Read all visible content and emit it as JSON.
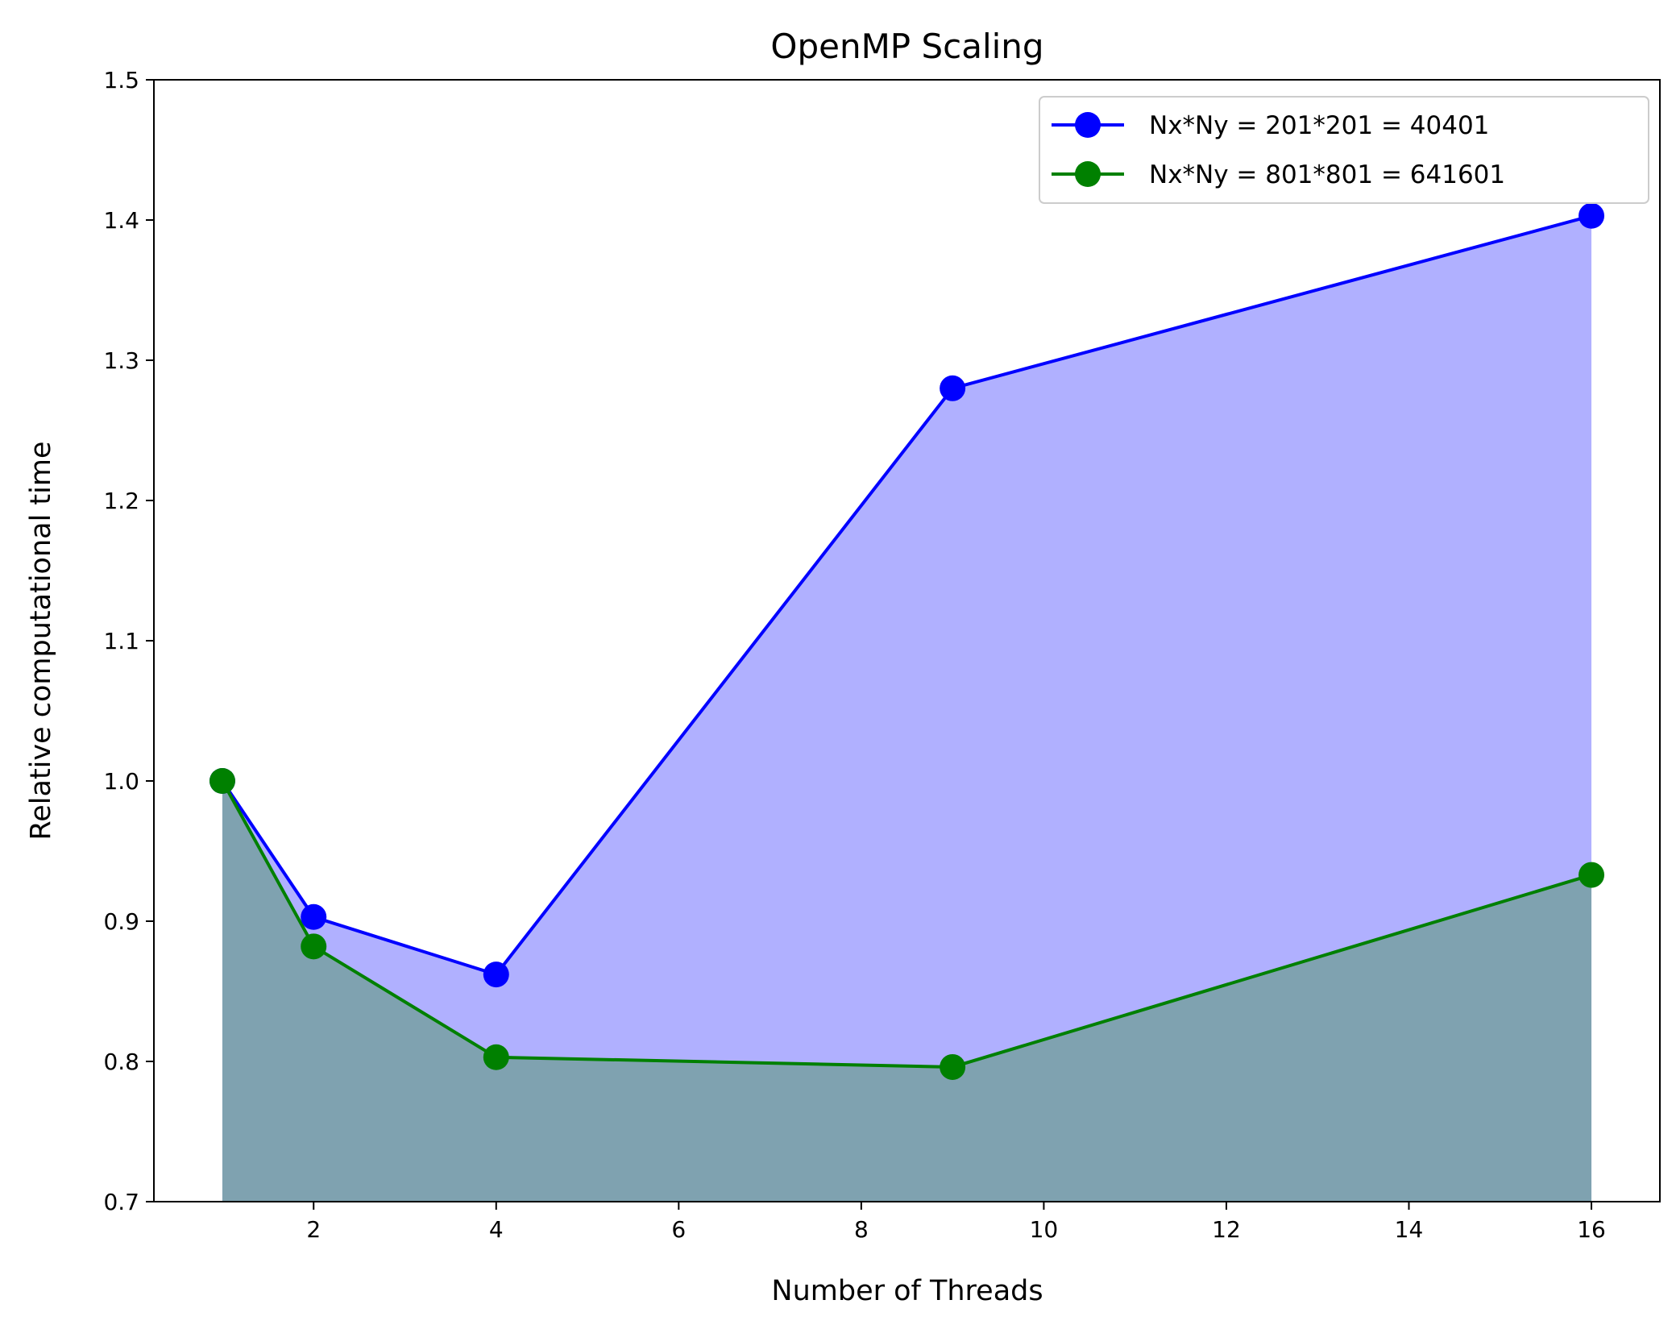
{
  "chart_data": {
    "type": "line",
    "title": "OpenMP Scaling",
    "xlabel": "Number of Threads",
    "ylabel": "Relative computational time",
    "xlim": [
      0.25,
      16.75
    ],
    "ylim": [
      0.7,
      1.5
    ],
    "xticks": [
      2,
      4,
      6,
      8,
      10,
      12,
      14,
      16
    ],
    "yticks": [
      0.7,
      0.8,
      0.9,
      1.0,
      1.1,
      1.2,
      1.3,
      1.4,
      1.5
    ],
    "xtick_labels": [
      "2",
      "4",
      "6",
      "8",
      "10",
      "12",
      "14",
      "16"
    ],
    "ytick_labels": [
      "0.7",
      "0.8",
      "0.9",
      "1.0",
      "1.1",
      "1.2",
      "1.3",
      "1.4",
      "1.5"
    ],
    "grid": false,
    "legend_position": "top-right",
    "fill_under_series": true,
    "series": [
      {
        "name": "Nx*Ny = 201*201 = 40401",
        "color": "#0000ff",
        "fill_color": "#b0b0ff",
        "x": [
          1,
          2,
          4,
          9,
          16
        ],
        "y": [
          1.0,
          0.903,
          0.862,
          1.28,
          1.403
        ]
      },
      {
        "name": "Nx*Ny = 801*801 = 641601",
        "color": "#008000",
        "fill_color": "#7fa2b0",
        "x": [
          1,
          2,
          4,
          9,
          16
        ],
        "y": [
          1.0,
          0.882,
          0.803,
          0.796,
          0.933
        ]
      }
    ]
  }
}
